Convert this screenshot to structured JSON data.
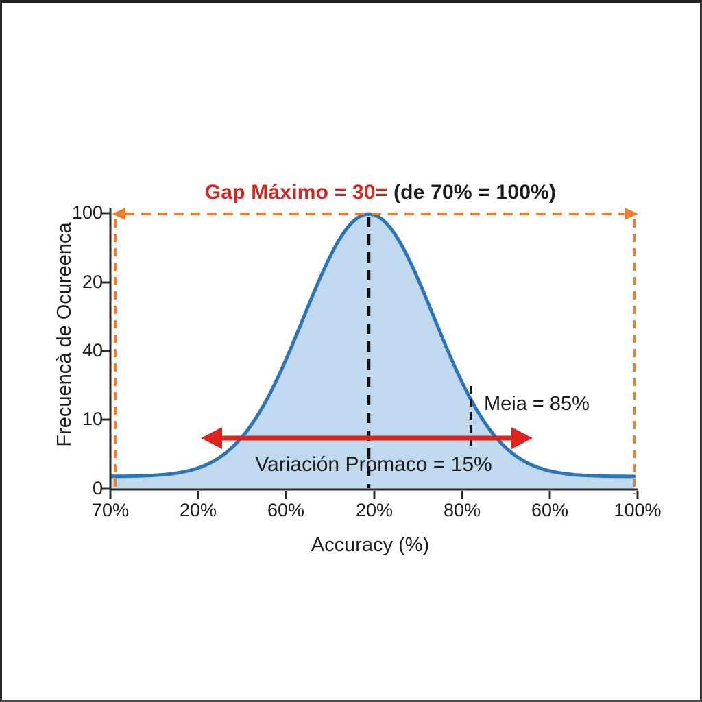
{
  "chart_data": {
    "type": "area",
    "description": "Bell-shaped (gaussian) frequency distribution curve of accuracy",
    "title": {
      "red_part": "Gap Máximo = 30=",
      "black_part": " (de 70% = 100%)"
    },
    "xlabel": "Accuracy (%)",
    "ylabel": "Frecuencà de Ocureenca",
    "x_tick_labels": [
      "70%",
      "20%",
      "60%",
      "20%",
      "80%",
      "60%",
      "100%"
    ],
    "y_tick_labels": [
      "100",
      "20",
      "40",
      "10",
      "0"
    ],
    "curve": {
      "shape": "gaussian-bell",
      "peak_value": 100,
      "tail_value": 2,
      "peak_at_x_tick": "20%",
      "fill_color": "#BDD7EE",
      "stroke_color": "#2E75B6"
    },
    "annotations": {
      "mean": "Meia = 85%",
      "variation": "Variación Promaco = 15%"
    },
    "colors": {
      "accent_orange": "#ED7D31",
      "accent_red": "#DF221C",
      "title_red": "#D02622",
      "axis_black": "#2b2b2b",
      "dash_black": "#111111"
    },
    "layout_hints": {
      "grid": "off",
      "gap_box": "orange dashed rectangle spanning full x-range at y=100 with outward arrowheads",
      "mean_marker": "short black dashed vertical line on right slope",
      "variation_marker": "red double-headed horizontal arrow across lower curve"
    }
  }
}
